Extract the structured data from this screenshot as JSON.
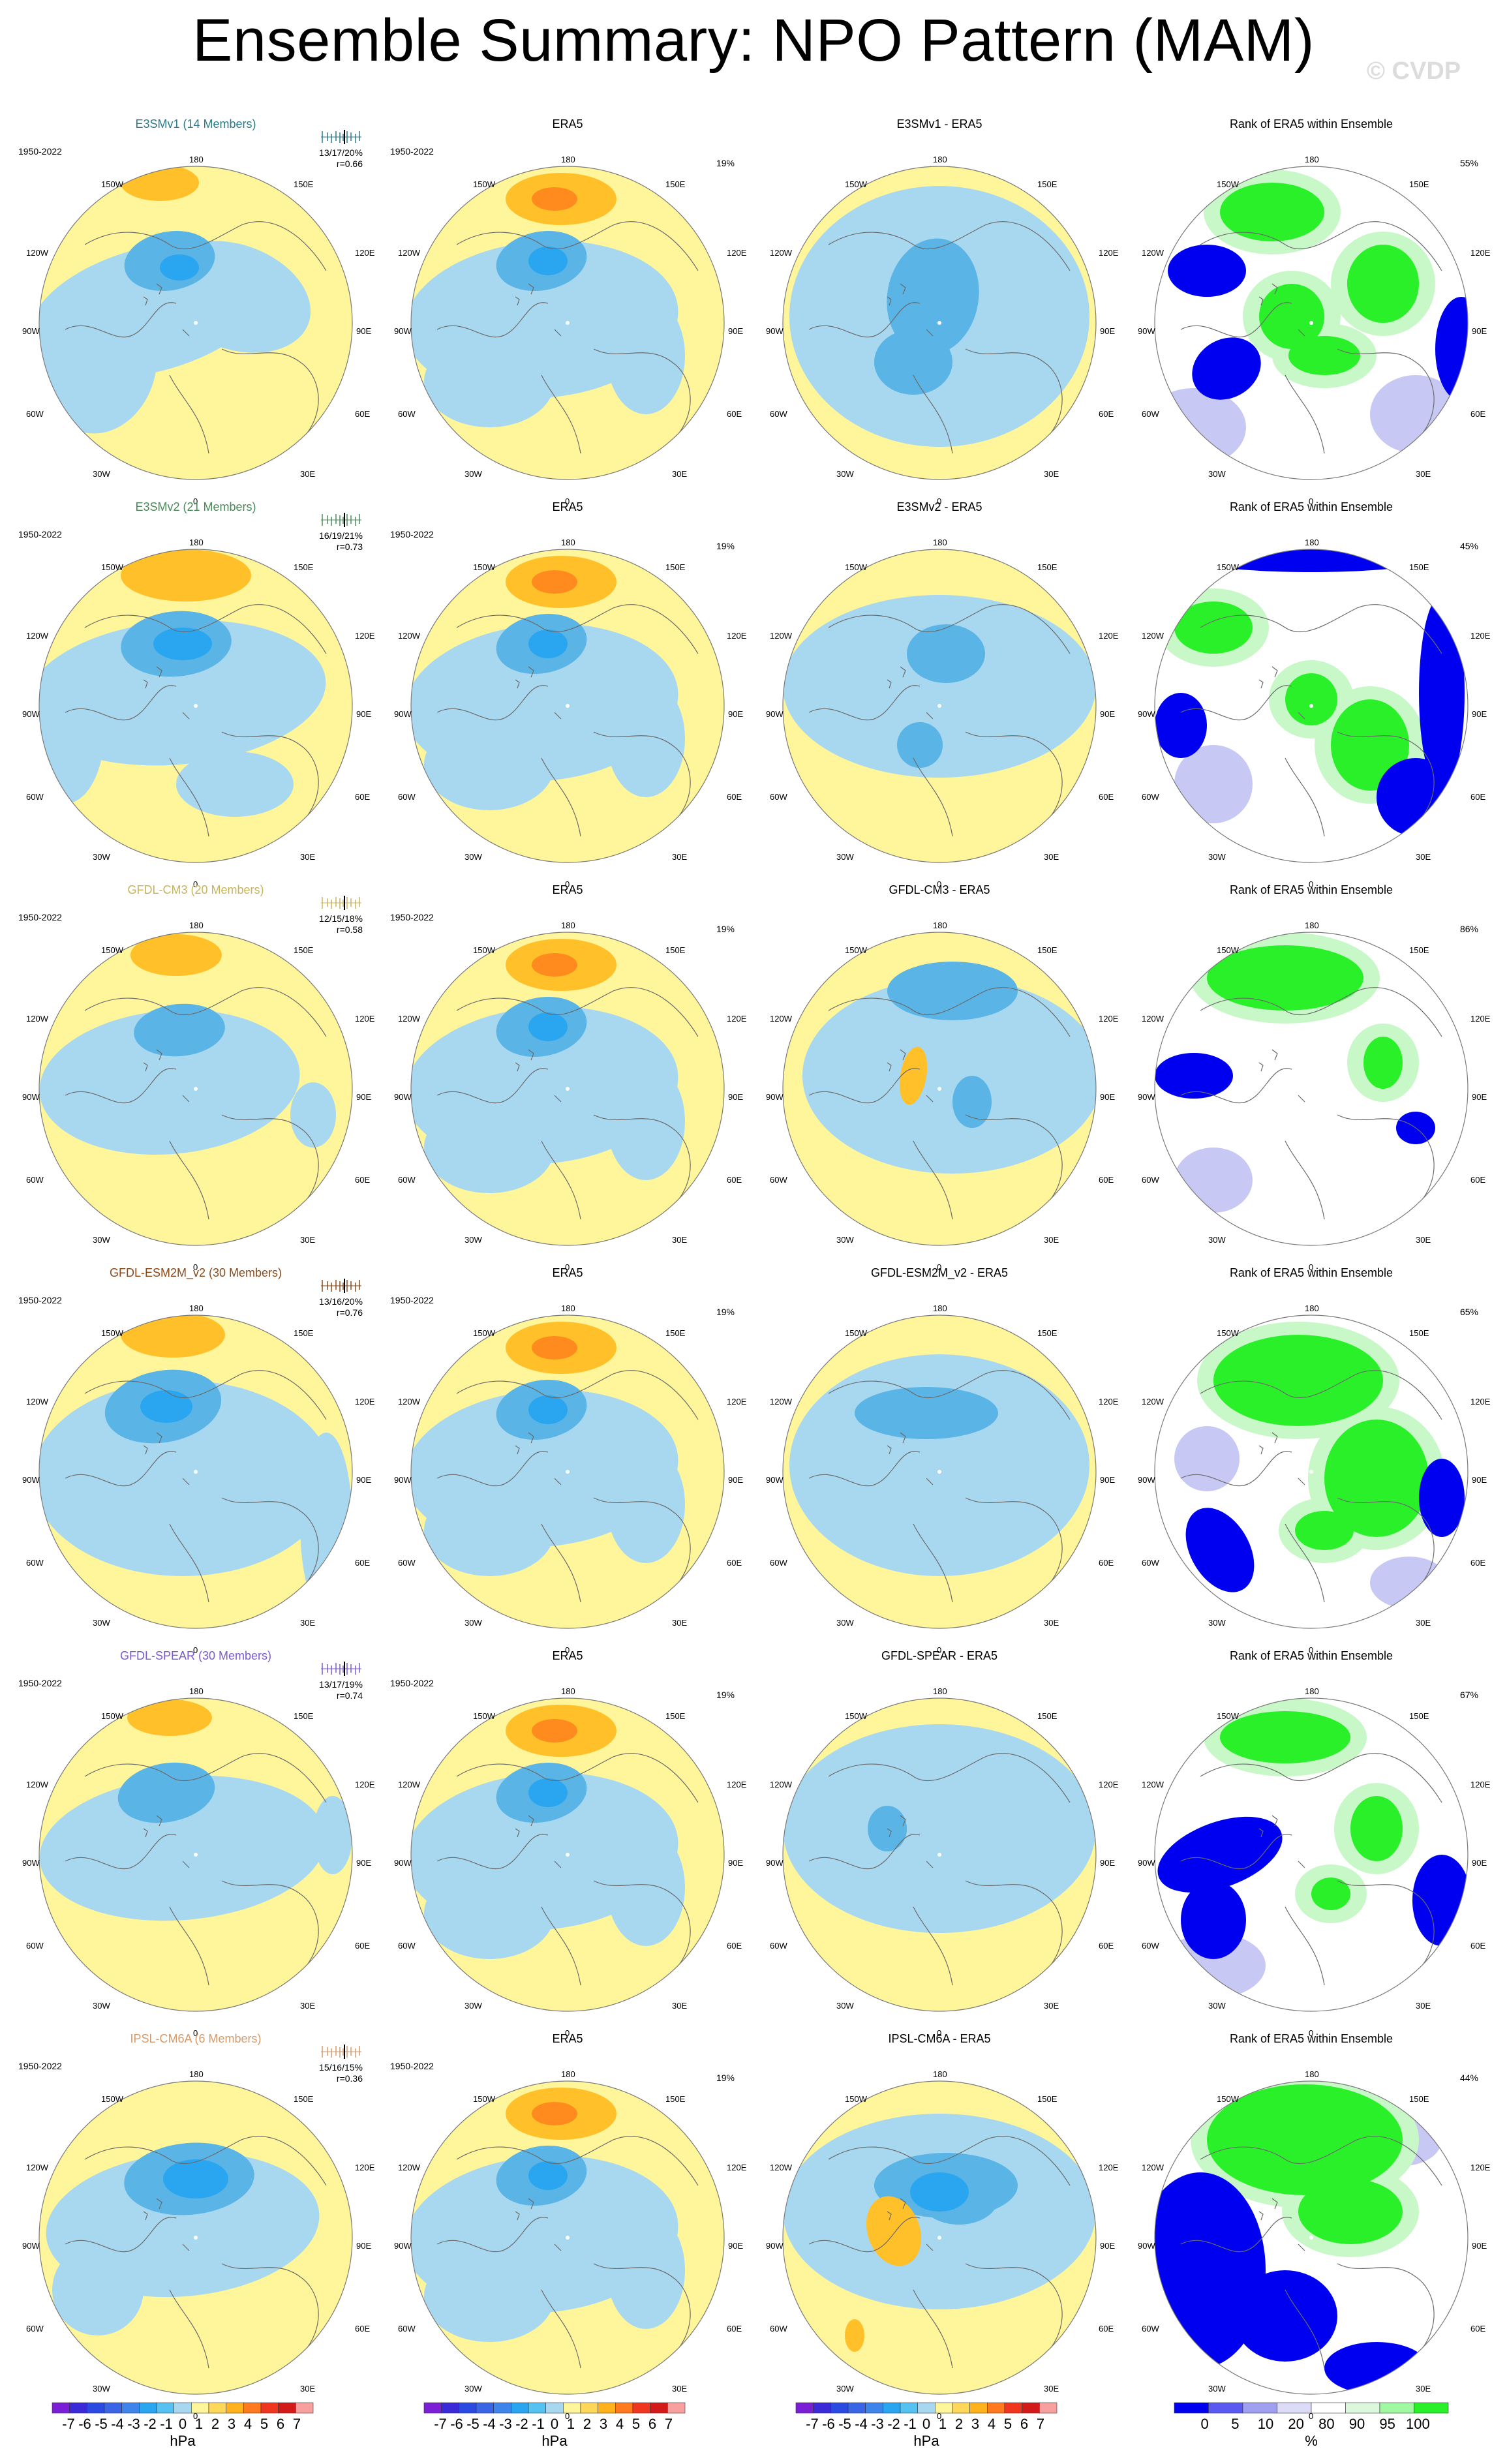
{
  "title": "Ensemble Summary: NPO Pattern (MAM)",
  "watermark": "© CVDP",
  "period": "1950-2022",
  "lon_labels": [
    "180",
    "150W",
    "150E",
    "120W",
    "120E",
    "90W",
    "90E",
    "60W",
    "60E",
    "30W",
    "30E",
    "0"
  ],
  "rows": [
    {
      "model": "E3SMv1 (14 Members)",
      "model_color": "#2a7a8c",
      "stats": "13/17/20%",
      "r": "r=0.66",
      "obs_title": "ERA5",
      "obs_pct": "19%",
      "diff_title": "E3SMv1 - ERA5",
      "rank_title": "Rank of ERA5 within Ensemble",
      "rank_pct": "55%",
      "pattern": "e3smv1"
    },
    {
      "model": "E3SMv2 (21 Members)",
      "model_color": "#4a8a5a",
      "stats": "16/19/21%",
      "r": "r=0.73",
      "obs_title": "ERA5",
      "obs_pct": "19%",
      "diff_title": "E3SMv2 - ERA5",
      "rank_title": "Rank of ERA5 within Ensemble",
      "rank_pct": "45%",
      "pattern": "e3smv2"
    },
    {
      "model": "GFDL-CM3 (20 Members)",
      "model_color": "#c8b45a",
      "stats": "12/15/18%",
      "r": "r=0.58",
      "obs_title": "ERA5",
      "obs_pct": "19%",
      "diff_title": "GFDL-CM3 - ERA5",
      "rank_title": "Rank of ERA5 within Ensemble",
      "rank_pct": "86%",
      "pattern": "gfdlcm3"
    },
    {
      "model": "GFDL-ESM2M_v2 (30 Members)",
      "model_color": "#8b4a1a",
      "stats": "13/16/20%",
      "r": "r=0.76",
      "obs_title": "ERA5",
      "obs_pct": "19%",
      "diff_title": "GFDL-ESM2M_v2 - ERA5",
      "rank_title": "Rank of ERA5 within Ensemble",
      "rank_pct": "65%",
      "pattern": "gfdlesm"
    },
    {
      "model": "GFDL-SPEAR (30 Members)",
      "model_color": "#7a5ad0",
      "stats": "13/17/19%",
      "r": "r=0.74",
      "obs_title": "ERA5",
      "obs_pct": "19%",
      "diff_title": "GFDL-SPEAR - ERA5",
      "rank_title": "Rank of ERA5 within Ensemble",
      "rank_pct": "67%",
      "pattern": "spear"
    },
    {
      "model": "IPSL-CM6A (6 Members)",
      "model_color": "#d49a6a",
      "stats": "15/16/15%",
      "r": "r=0.36",
      "obs_title": "ERA5",
      "obs_pct": "19%",
      "diff_title": "IPSL-CM6A - ERA5",
      "rank_title": "Rank of ERA5 within Ensemble",
      "rank_pct": "44%",
      "pattern": "ipsl"
    }
  ],
  "colorbar_hpa": {
    "labels": [
      "-7",
      "-6",
      "-5",
      "-4",
      "-3",
      "-2",
      "-1",
      "0",
      "1",
      "2",
      "3",
      "4",
      "5",
      "6",
      "7"
    ],
    "colors": [
      "#7a1fd6",
      "#3a2ad8",
      "#2a4ae0",
      "#3a66e6",
      "#3f84ea",
      "#2aa6f0",
      "#56c2f2",
      "#a8d8f0",
      "#fff59a",
      "#ffd85a",
      "#ffb21e",
      "#ff7a1e",
      "#f0361e",
      "#d21a1a",
      "#f8a0a0"
    ],
    "unit": "hPa"
  },
  "colorbar_rank": {
    "labels": [
      "0",
      "5",
      "10",
      "20",
      "80",
      "90",
      "95",
      "100"
    ],
    "colors": [
      "#0000f0",
      "#5a5af0",
      "#a0a0f0",
      "#dcdcf8",
      "#ffffff",
      "#dcf8dc",
      "#a0f8a0",
      "#2af02a"
    ],
    "unit": "%"
  },
  "colors": {
    "land_yellow": "#fff59a",
    "light_blue": "#a8d8f0",
    "mid_blue": "#5ab4e6",
    "deep_blue": "#2aa6f0",
    "orange": "#ffc02a",
    "dark_orange": "#ff8a1e",
    "rank_blue": "#0000f0",
    "rank_green": "#2af02a",
    "rank_lightgreen": "#c8f8c8",
    "rank_lavender": "#c8c8f4"
  }
}
